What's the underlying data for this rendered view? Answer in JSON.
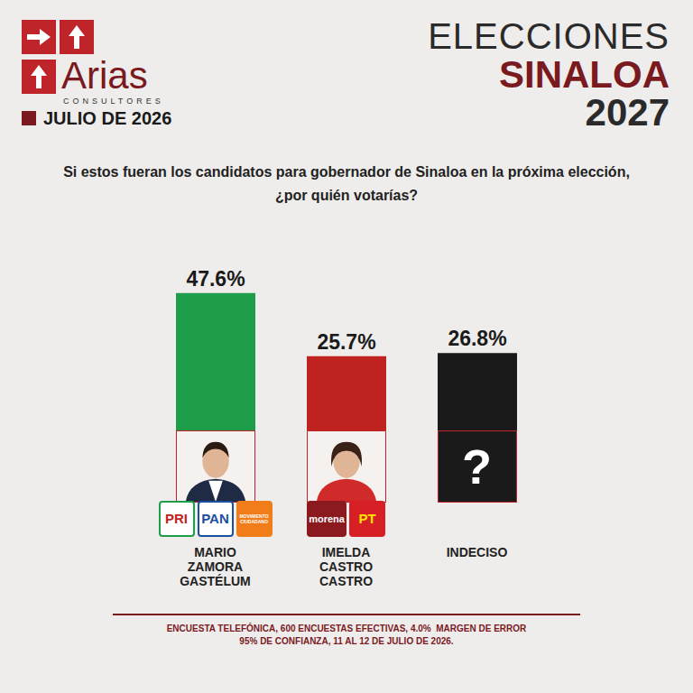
{
  "header": {
    "brand": "Arias",
    "brand_sub": "CONSULTORES",
    "date": "JULIO DE 2026",
    "title_lines": [
      "ELECCIONES",
      "SINALOA",
      "2027"
    ]
  },
  "chart_data": {
    "type": "bar",
    "title": "Si estos fueran los candidatos para gobernador de Sinaloa en la próxima elección, ¿por quién votarías?",
    "categories": [
      "MARIO ZAMORA GASTÉLUM",
      "IMELDA CASTRO CASTRO",
      "INDECISO"
    ],
    "values": [
      47.6,
      25.7,
      26.8
    ],
    "value_labels": [
      "47.6%",
      "25.7%",
      "26.8%"
    ],
    "colors": [
      "#1e9e4a",
      "#c0231f",
      "#1a1a1a"
    ],
    "ylim": [
      0,
      50
    ],
    "data_labels": true,
    "tick_labels": false
  },
  "parties": [
    [
      "PRI",
      "PAN",
      "MOVIMIENTO CIUDADANO"
    ],
    [
      "morena",
      "PT"
    ],
    []
  ],
  "undecided_symbol": "?",
  "footer": [
    "ENCUESTA TELEFÓNICA, 600 ENCUESTAS EFECTIVAS, 4.0%  MARGEN DE ERROR",
    "95% DE CONFIANZA, 11 AL 12 DE JULIO DE 2026."
  ]
}
